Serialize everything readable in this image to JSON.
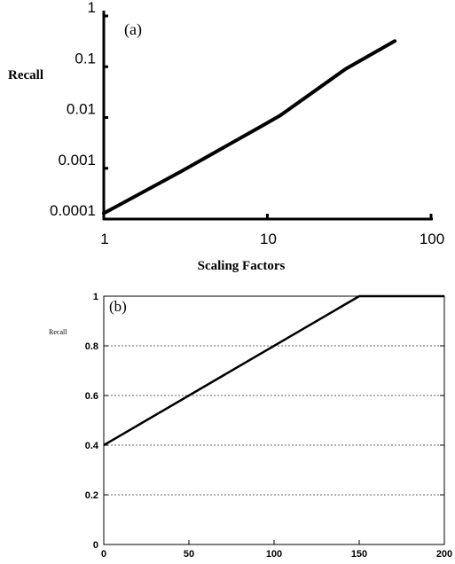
{
  "chart_data": [
    {
      "type": "line",
      "panel_label": "(a)",
      "ylabel": "Recall",
      "xlabel": "Scaling Factors",
      "xscale": "log",
      "yscale": "log",
      "xlim": [
        1,
        100
      ],
      "ylim": [
        0.0001,
        1
      ],
      "x_ticks": [
        1,
        10,
        100
      ],
      "x_tick_labels": [
        "1",
        "10",
        "100"
      ],
      "y_ticks": [
        0.0001,
        0.001,
        0.01,
        0.1,
        1
      ],
      "y_tick_labels": [
        "0.0001",
        "0.001",
        "0.01",
        "0.1",
        "1"
      ],
      "grid": false,
      "series": [
        {
          "x": [
            1,
            3,
            9,
            12,
            30,
            60
          ],
          "y": [
            0.00013,
            0.00088,
            0.0065,
            0.011,
            0.09,
            0.32
          ]
        }
      ]
    },
    {
      "type": "line",
      "panel_label": "(b)",
      "ylabel": "Recall",
      "xlabel": "",
      "xlim": [
        0,
        200
      ],
      "ylim": [
        0,
        1
      ],
      "x_ticks": [
        0,
        50,
        100,
        150,
        200
      ],
      "x_tick_labels": [
        "0",
        "50",
        "100",
        "150",
        "200"
      ],
      "y_ticks": [
        0,
        0.2,
        0.4,
        0.6,
        0.8,
        1
      ],
      "y_tick_labels": [
        "0",
        "0.2",
        "0.4",
        "0.6",
        "0.8",
        "1"
      ],
      "grid": true,
      "series": [
        {
          "x": [
            0,
            150,
            200
          ],
          "y": [
            0.4,
            1,
            1
          ]
        }
      ]
    }
  ]
}
